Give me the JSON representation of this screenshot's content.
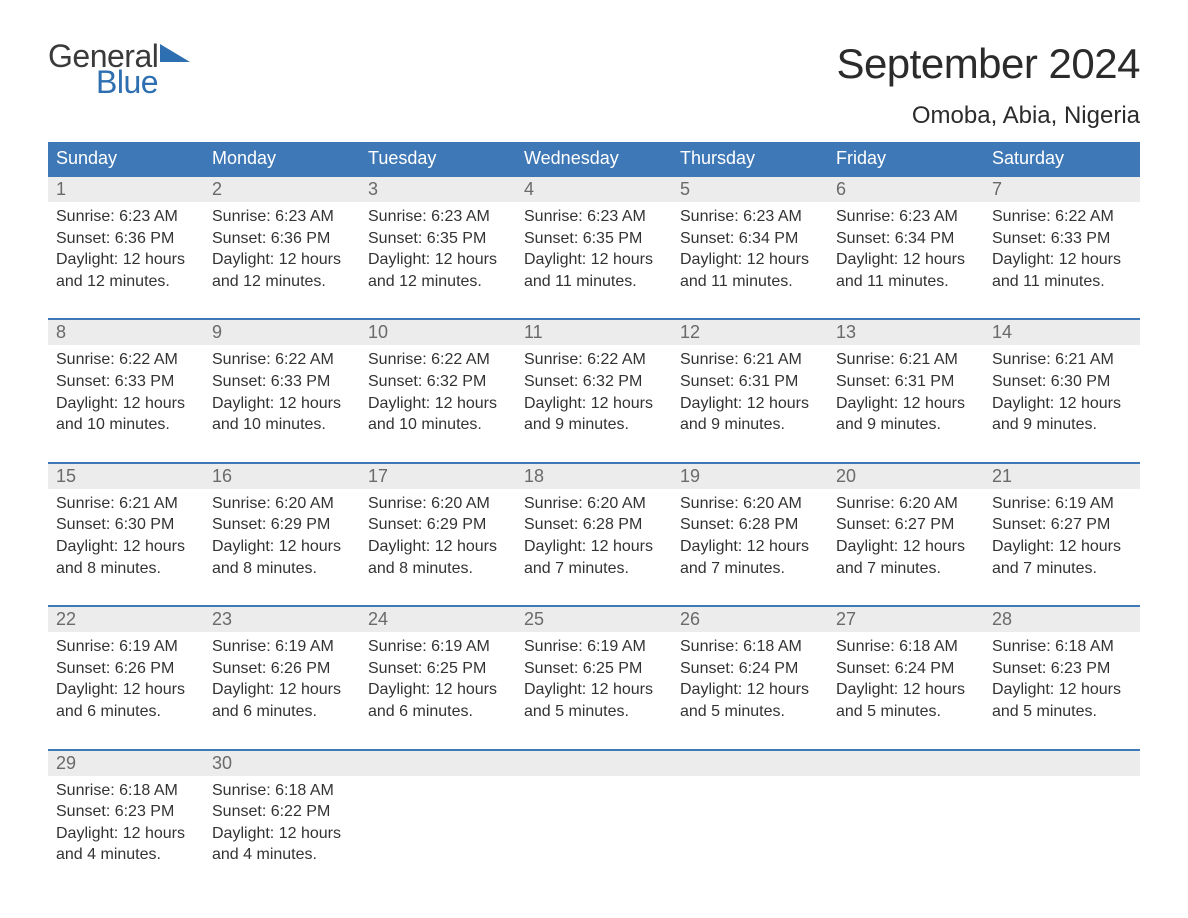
{
  "brand": {
    "word1": "General",
    "word2": "Blue",
    "triangle_color": "#2d6fb0",
    "word1_color": "#3a3a3a",
    "word2_color": "#2d6fb0"
  },
  "header": {
    "title": "September 2024",
    "location": "Omoba, Abia, Nigeria"
  },
  "colors": {
    "header_bg": "#3f78b6",
    "header_fg": "#ffffff",
    "daynum_bg": "#ececec",
    "daynum_fg": "#6a6a6a",
    "body_fg": "#333333",
    "week_border": "#3f78b6",
    "page_bg": "#ffffff"
  },
  "typography": {
    "title_fontsize": 42,
    "location_fontsize": 24,
    "dow_fontsize": 18,
    "daynum_fontsize": 18,
    "body_fontsize": 16,
    "font_family": "Arial"
  },
  "days_of_week": [
    "Sunday",
    "Monday",
    "Tuesday",
    "Wednesday",
    "Thursday",
    "Friday",
    "Saturday"
  ],
  "labels": {
    "sunrise_prefix": "Sunrise: ",
    "sunset_prefix": "Sunset: ",
    "daylight_prefix": "Daylight: "
  },
  "weeks": [
    [
      {
        "n": "1",
        "sr": "6:23 AM",
        "ss": "6:36 PM",
        "dl": "12 hours and 12 minutes."
      },
      {
        "n": "2",
        "sr": "6:23 AM",
        "ss": "6:36 PM",
        "dl": "12 hours and 12 minutes."
      },
      {
        "n": "3",
        "sr": "6:23 AM",
        "ss": "6:35 PM",
        "dl": "12 hours and 12 minutes."
      },
      {
        "n": "4",
        "sr": "6:23 AM",
        "ss": "6:35 PM",
        "dl": "12 hours and 11 minutes."
      },
      {
        "n": "5",
        "sr": "6:23 AM",
        "ss": "6:34 PM",
        "dl": "12 hours and 11 minutes."
      },
      {
        "n": "6",
        "sr": "6:23 AM",
        "ss": "6:34 PM",
        "dl": "12 hours and 11 minutes."
      },
      {
        "n": "7",
        "sr": "6:22 AM",
        "ss": "6:33 PM",
        "dl": "12 hours and 11 minutes."
      }
    ],
    [
      {
        "n": "8",
        "sr": "6:22 AM",
        "ss": "6:33 PM",
        "dl": "12 hours and 10 minutes."
      },
      {
        "n": "9",
        "sr": "6:22 AM",
        "ss": "6:33 PM",
        "dl": "12 hours and 10 minutes."
      },
      {
        "n": "10",
        "sr": "6:22 AM",
        "ss": "6:32 PM",
        "dl": "12 hours and 10 minutes."
      },
      {
        "n": "11",
        "sr": "6:22 AM",
        "ss": "6:32 PM",
        "dl": "12 hours and 9 minutes."
      },
      {
        "n": "12",
        "sr": "6:21 AM",
        "ss": "6:31 PM",
        "dl": "12 hours and 9 minutes."
      },
      {
        "n": "13",
        "sr": "6:21 AM",
        "ss": "6:31 PM",
        "dl": "12 hours and 9 minutes."
      },
      {
        "n": "14",
        "sr": "6:21 AM",
        "ss": "6:30 PM",
        "dl": "12 hours and 9 minutes."
      }
    ],
    [
      {
        "n": "15",
        "sr": "6:21 AM",
        "ss": "6:30 PM",
        "dl": "12 hours and 8 minutes."
      },
      {
        "n": "16",
        "sr": "6:20 AM",
        "ss": "6:29 PM",
        "dl": "12 hours and 8 minutes."
      },
      {
        "n": "17",
        "sr": "6:20 AM",
        "ss": "6:29 PM",
        "dl": "12 hours and 8 minutes."
      },
      {
        "n": "18",
        "sr": "6:20 AM",
        "ss": "6:28 PM",
        "dl": "12 hours and 7 minutes."
      },
      {
        "n": "19",
        "sr": "6:20 AM",
        "ss": "6:28 PM",
        "dl": "12 hours and 7 minutes."
      },
      {
        "n": "20",
        "sr": "6:20 AM",
        "ss": "6:27 PM",
        "dl": "12 hours and 7 minutes."
      },
      {
        "n": "21",
        "sr": "6:19 AM",
        "ss": "6:27 PM",
        "dl": "12 hours and 7 minutes."
      }
    ],
    [
      {
        "n": "22",
        "sr": "6:19 AM",
        "ss": "6:26 PM",
        "dl": "12 hours and 6 minutes."
      },
      {
        "n": "23",
        "sr": "6:19 AM",
        "ss": "6:26 PM",
        "dl": "12 hours and 6 minutes."
      },
      {
        "n": "24",
        "sr": "6:19 AM",
        "ss": "6:25 PM",
        "dl": "12 hours and 6 minutes."
      },
      {
        "n": "25",
        "sr": "6:19 AM",
        "ss": "6:25 PM",
        "dl": "12 hours and 5 minutes."
      },
      {
        "n": "26",
        "sr": "6:18 AM",
        "ss": "6:24 PM",
        "dl": "12 hours and 5 minutes."
      },
      {
        "n": "27",
        "sr": "6:18 AM",
        "ss": "6:24 PM",
        "dl": "12 hours and 5 minutes."
      },
      {
        "n": "28",
        "sr": "6:18 AM",
        "ss": "6:23 PM",
        "dl": "12 hours and 5 minutes."
      }
    ],
    [
      {
        "n": "29",
        "sr": "6:18 AM",
        "ss": "6:23 PM",
        "dl": "12 hours and 4 minutes."
      },
      {
        "n": "30",
        "sr": "6:18 AM",
        "ss": "6:22 PM",
        "dl": "12 hours and 4 minutes."
      },
      null,
      null,
      null,
      null,
      null
    ]
  ]
}
